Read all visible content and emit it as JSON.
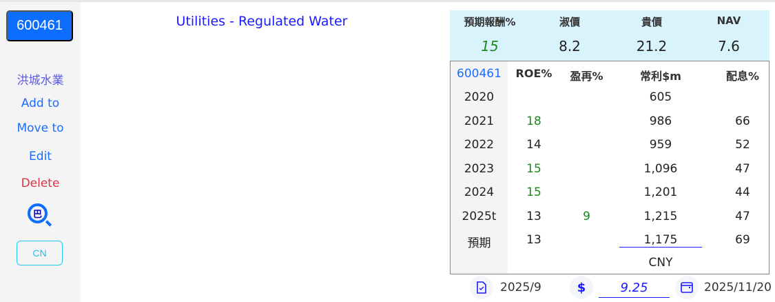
{
  "sidebar": {
    "code": "600461",
    "name": "洪城水業",
    "add_to": "Add to",
    "move_to": "Move to",
    "edit": "Edit",
    "delete": "Delete",
    "search_icon_glyph": "巴",
    "cn": "CN"
  },
  "title": "Utilities - Regulated Water",
  "summary": {
    "headers": [
      "預期報酬%",
      "淑價",
      "貴價",
      "NAV"
    ],
    "values": [
      "15",
      "8.2",
      "21.2",
      "7.6"
    ]
  },
  "table": {
    "headers": [
      "600461",
      "ROE%",
      "盈再%",
      "常利$m",
      "配息%"
    ],
    "rows": [
      [
        "2020",
        "",
        "",
        "605",
        ""
      ],
      [
        "2021",
        "18",
        "",
        "986",
        "66"
      ],
      [
        "2022",
        "14",
        "",
        "959",
        "52"
      ],
      [
        "2023",
        "15",
        "",
        "1,096",
        "47"
      ],
      [
        "2024",
        "15",
        "",
        "1,201",
        "44"
      ],
      [
        "2025t",
        "13",
        "9",
        "1,215",
        "47"
      ],
      [
        "預期",
        "13",
        "",
        "1,175",
        "69"
      ]
    ],
    "currency": "CNY"
  },
  "footer": {
    "report_date": "2025/9",
    "price": "9.25",
    "price_symbol": "$",
    "date": "2025/11/20"
  },
  "colors": {
    "accent": "#0d6efd",
    "link": "#1a6dff",
    "delete": "#dc3545",
    "good": "#1a8a1a",
    "summary_bg": "#d9f3fc"
  }
}
